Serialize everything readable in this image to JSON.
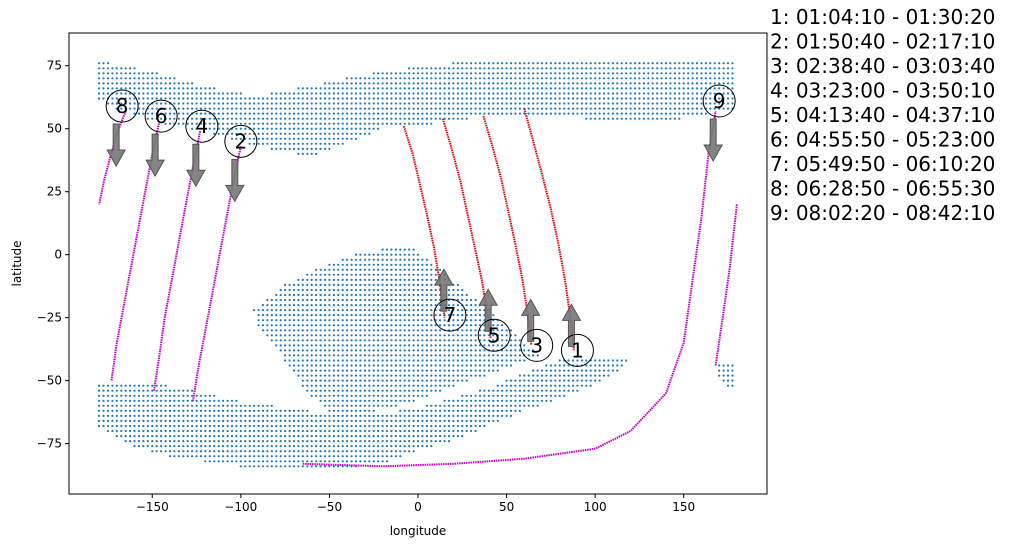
{
  "chart_data": {
    "type": "scatter",
    "title": "",
    "xlabel": "longitude",
    "ylabel": "latitude",
    "xlim": [
      -197,
      197
    ],
    "ylim": [
      -95,
      88
    ],
    "xticks": [
      -150,
      -100,
      -50,
      0,
      50,
      100,
      150
    ],
    "yticks": [
      75,
      50,
      25,
      0,
      -25,
      -50,
      -75
    ],
    "grid": false,
    "colors": {
      "land": "#1f77b4",
      "track_red": "#e8000b",
      "track_magenta": "#c100c8",
      "arrow": "#777777"
    },
    "land_regions": [
      {
        "name": "north",
        "polygon": [
          [
            -180,
            77
          ],
          [
            -150,
            73
          ],
          [
            -120,
            67
          ],
          [
            -90,
            63
          ],
          [
            -60,
            67
          ],
          [
            -20,
            73
          ],
          [
            20,
            76
          ],
          [
            60,
            77
          ],
          [
            100,
            76
          ],
          [
            140,
            77
          ],
          [
            180,
            77
          ],
          [
            180,
            58
          ],
          [
            150,
            54
          ],
          [
            110,
            53
          ],
          [
            60,
            56
          ],
          [
            40,
            55
          ],
          [
            10,
            52
          ],
          [
            -20,
            50
          ],
          [
            -40,
            44
          ],
          [
            -60,
            39
          ],
          [
            -90,
            43
          ],
          [
            -120,
            49
          ],
          [
            -150,
            53
          ],
          [
            -170,
            58
          ],
          [
            -180,
            62
          ]
        ]
      },
      {
        "name": "south",
        "polygon": [
          [
            -180,
            -50
          ],
          [
            -160,
            -50
          ],
          [
            -140,
            -52
          ],
          [
            -120,
            -55
          ],
          [
            -100,
            -58
          ],
          [
            -80,
            -60
          ],
          [
            -60,
            -62
          ],
          [
            -30,
            -64
          ],
          [
            0,
            -61
          ],
          [
            20,
            -57
          ],
          [
            40,
            -53
          ],
          [
            60,
            -47
          ],
          [
            80,
            -42
          ],
          [
            100,
            -40
          ],
          [
            115,
            -40
          ],
          [
            120,
            -41
          ],
          [
            110,
            -48
          ],
          [
            100,
            -52
          ],
          [
            80,
            -57
          ],
          [
            60,
            -62
          ],
          [
            40,
            -68
          ],
          [
            20,
            -74
          ],
          [
            0,
            -78
          ],
          [
            -20,
            -83
          ],
          [
            -60,
            -86
          ],
          [
            -100,
            -84
          ],
          [
            -140,
            -80
          ],
          [
            -165,
            -75
          ],
          [
            -180,
            -68
          ]
        ]
      },
      {
        "name": "center",
        "polygon": [
          [
            -93,
            -22
          ],
          [
            -75,
            -12
          ],
          [
            -55,
            -5
          ],
          [
            -35,
            0
          ],
          [
            -15,
            3
          ],
          [
            -5,
            4
          ],
          [
            0,
            1
          ],
          [
            10,
            -4
          ],
          [
            20,
            -10
          ],
          [
            30,
            -16
          ],
          [
            40,
            -21
          ],
          [
            50,
            -28
          ],
          [
            60,
            -35
          ],
          [
            70,
            -40
          ],
          [
            50,
            -45
          ],
          [
            30,
            -50
          ],
          [
            10,
            -55
          ],
          [
            -10,
            -60
          ],
          [
            -30,
            -63
          ],
          [
            -50,
            -62
          ],
          [
            -62,
            -55
          ],
          [
            -72,
            -45
          ],
          [
            -82,
            -35
          ],
          [
            -90,
            -28
          ]
        ]
      },
      {
        "name": "east-bits",
        "polygon": [
          [
            168,
            -43
          ],
          [
            180,
            -43
          ],
          [
            180,
            -53
          ],
          [
            175,
            -52
          ],
          [
            170,
            -48
          ]
        ]
      }
    ],
    "tracks": [
      {
        "label": "1",
        "color": "red",
        "points": [
          [
            60,
            58
          ],
          [
            65,
            45
          ],
          [
            70,
            32
          ],
          [
            75,
            18
          ],
          [
            79,
            5
          ],
          [
            83,
            -10
          ],
          [
            86,
            -25
          ],
          [
            88,
            -38
          ]
        ]
      },
      {
        "label": "3",
        "color": "red",
        "points": [
          [
            37,
            55
          ],
          [
            42,
            43
          ],
          [
            47,
            30
          ],
          [
            51,
            17
          ],
          [
            55,
            4
          ],
          [
            59,
            -10
          ],
          [
            62,
            -24
          ],
          [
            64,
            -36
          ]
        ]
      },
      {
        "label": "5",
        "color": "red",
        "points": [
          [
            14,
            54
          ],
          [
            19,
            42
          ],
          [
            24,
            29
          ],
          [
            28,
            16
          ],
          [
            32,
            3
          ],
          [
            36,
            -10
          ],
          [
            39,
            -23
          ],
          [
            41,
            -33
          ]
        ]
      },
      {
        "label": "7",
        "color": "red",
        "points": [
          [
            -8,
            51
          ],
          [
            -3,
            40
          ],
          [
            1,
            28
          ],
          [
            5,
            16
          ],
          [
            9,
            3
          ],
          [
            12,
            -10
          ],
          [
            15,
            -25
          ]
        ]
      },
      {
        "label": "2",
        "color": "magenta",
        "points": [
          [
            -100,
            43
          ],
          [
            -104,
            30
          ],
          [
            -108,
            15
          ],
          [
            -112,
            0
          ],
          [
            -116,
            -15
          ],
          [
            -120,
            -30
          ],
          [
            -124,
            -45
          ],
          [
            -127,
            -58
          ]
        ]
      },
      {
        "label": "4",
        "color": "magenta",
        "points": [
          [
            -123,
            49
          ],
          [
            -127,
            35
          ],
          [
            -131,
            20
          ],
          [
            -135,
            5
          ],
          [
            -139,
            -10
          ],
          [
            -143,
            -25
          ],
          [
            -146,
            -40
          ],
          [
            -149,
            -54
          ]
        ]
      },
      {
        "label": "6",
        "color": "magenta",
        "points": [
          [
            -146,
            53
          ],
          [
            -150,
            40
          ],
          [
            -154,
            25
          ],
          [
            -158,
            10
          ],
          [
            -162,
            -5
          ],
          [
            -166,
            -20
          ],
          [
            -170,
            -35
          ],
          [
            -173,
            -50
          ]
        ]
      },
      {
        "label": "8",
        "color": "magenta",
        "points": [
          [
            -165,
            57
          ],
          [
            -170,
            48
          ],
          [
            -174,
            38
          ],
          [
            -177,
            30
          ],
          [
            -180,
            20
          ]
        ]
      },
      {
        "label": "9",
        "color": "magenta",
        "points": [
          [
            -65,
            -83
          ],
          [
            -20,
            -84
          ],
          [
            20,
            -83
          ],
          [
            60,
            -81
          ],
          [
            100,
            -77
          ],
          [
            120,
            -70
          ],
          [
            140,
            -55
          ],
          [
            150,
            -35
          ],
          [
            155,
            -10
          ],
          [
            160,
            15
          ],
          [
            164,
            40
          ],
          [
            168,
            57
          ]
        ]
      },
      {
        "label": "9b",
        "color": "magenta",
        "points": [
          [
            168,
            -44
          ],
          [
            172,
            -25
          ],
          [
            176,
            -5
          ],
          [
            180,
            20
          ]
        ]
      }
    ],
    "markers": [
      {
        "label": "1",
        "x": 90,
        "y": -38,
        "arrow": "up"
      },
      {
        "label": "2",
        "x": -100,
        "y": 45,
        "arrow": "down"
      },
      {
        "label": "3",
        "x": 67,
        "y": -36,
        "arrow": "up"
      },
      {
        "label": "4",
        "x": -122,
        "y": 51,
        "arrow": "down"
      },
      {
        "label": "5",
        "x": 43,
        "y": -32,
        "arrow": "up"
      },
      {
        "label": "6",
        "x": -145,
        "y": 55,
        "arrow": "down"
      },
      {
        "label": "7",
        "x": 18,
        "y": -24,
        "arrow": "up"
      },
      {
        "label": "8",
        "x": -167,
        "y": 59,
        "arrow": "down"
      },
      {
        "label": "9",
        "x": 170,
        "y": 61,
        "arrow": "down"
      }
    ],
    "legend_placement": "outside-right",
    "legend": [
      "1:  01:04:10 - 01:30:20",
      "2:  01:50:40 - 02:17:10",
      "3:  02:38:40 - 03:03:40",
      "4:  03:23:00 - 03:50:10",
      "5:  04:13:40 - 04:37:10",
      "6:  04:55:50 - 05:23:00",
      "7:  05:49:50 - 06:10:20",
      "8:  06:28:50 - 06:55:30",
      "9:  08:02:20 - 08:42:10"
    ]
  }
}
